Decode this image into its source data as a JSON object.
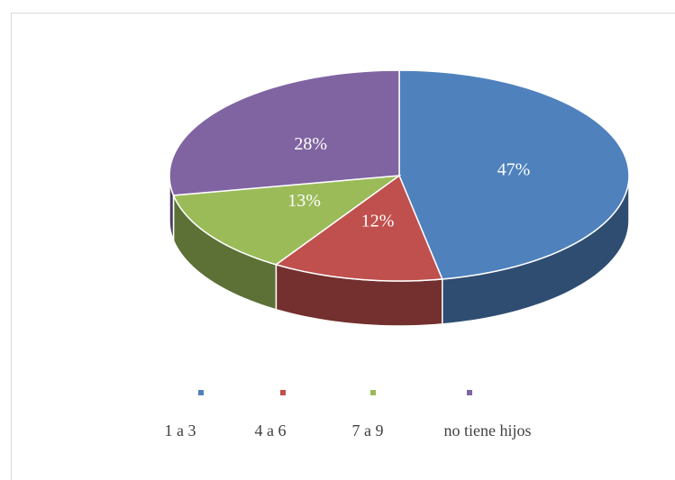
{
  "chart_data": {
    "type": "pie",
    "categories": [
      "1 a 3",
      "4 a 6",
      "7 a 9",
      "no tiene hijos"
    ],
    "values": [
      47,
      12,
      13,
      28
    ],
    "value_labels": [
      "47%",
      "12%",
      "13%",
      "28%"
    ],
    "colors": [
      "#4f81bd",
      "#c0504d",
      "#9bbb59",
      "#8064a2"
    ],
    "legend": "bottom"
  }
}
